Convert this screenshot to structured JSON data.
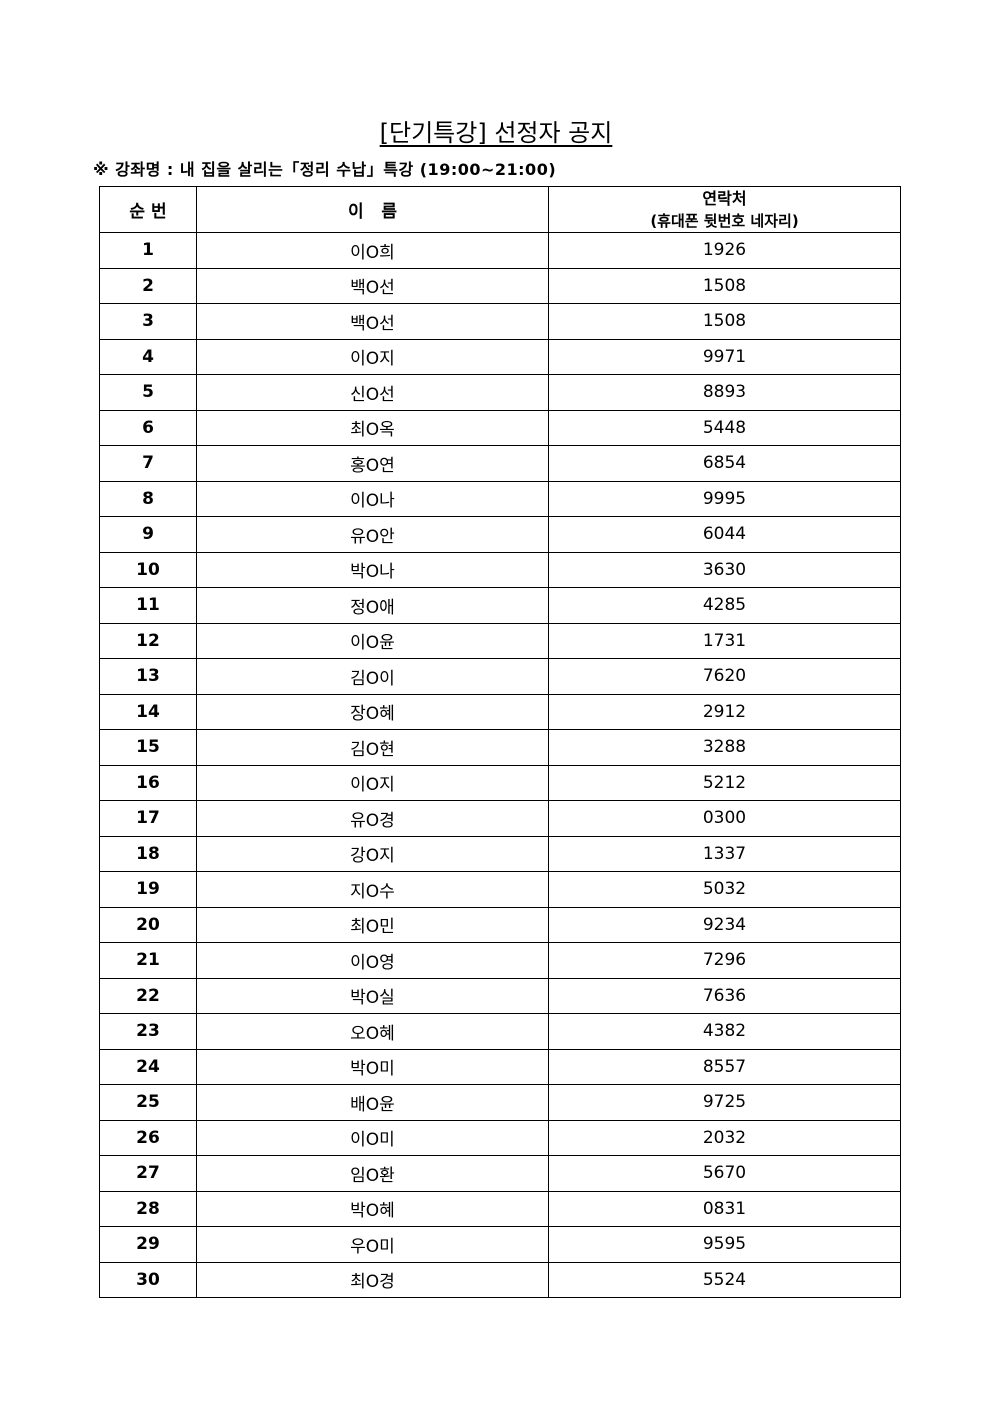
{
  "title": "[단기특강] 선정자 공지",
  "subtitle": "※ 강좌명 : 내 집을 살리는「정리 수납」특강 (19:00~21:00)",
  "table": {
    "headers": {
      "no": "순 번",
      "name": "이   름",
      "contact": "연락처",
      "contact_sub": "(휴대폰 뒷번호 네자리)"
    },
    "rows": [
      {
        "no": "1",
        "name": "이O희",
        "phone": "1926"
      },
      {
        "no": "2",
        "name": "백O선",
        "phone": "1508"
      },
      {
        "no": "3",
        "name": "백O선",
        "phone": "1508"
      },
      {
        "no": "4",
        "name": "이O지",
        "phone": "9971"
      },
      {
        "no": "5",
        "name": "신O선",
        "phone": "8893"
      },
      {
        "no": "6",
        "name": "최O옥",
        "phone": "5448"
      },
      {
        "no": "7",
        "name": "홍O연",
        "phone": "6854"
      },
      {
        "no": "8",
        "name": "이O나",
        "phone": "9995"
      },
      {
        "no": "9",
        "name": "유O안",
        "phone": "6044"
      },
      {
        "no": "10",
        "name": "박O나",
        "phone": "3630"
      },
      {
        "no": "11",
        "name": "정O애",
        "phone": "4285"
      },
      {
        "no": "12",
        "name": "이O윤",
        "phone": "1731"
      },
      {
        "no": "13",
        "name": "김O이",
        "phone": "7620"
      },
      {
        "no": "14",
        "name": "장O혜",
        "phone": "2912"
      },
      {
        "no": "15",
        "name": "김O현",
        "phone": "3288"
      },
      {
        "no": "16",
        "name": "이O지",
        "phone": "5212"
      },
      {
        "no": "17",
        "name": "유O경",
        "phone": "0300"
      },
      {
        "no": "18",
        "name": "강O지",
        "phone": "1337"
      },
      {
        "no": "19",
        "name": "지O수",
        "phone": "5032"
      },
      {
        "no": "20",
        "name": "최O민",
        "phone": "9234"
      },
      {
        "no": "21",
        "name": "이O영",
        "phone": "7296"
      },
      {
        "no": "22",
        "name": "박O실",
        "phone": "7636"
      },
      {
        "no": "23",
        "name": "오O혜",
        "phone": "4382"
      },
      {
        "no": "24",
        "name": "박O미",
        "phone": "8557"
      },
      {
        "no": "25",
        "name": "배O윤",
        "phone": "9725"
      },
      {
        "no": "26",
        "name": "이O미",
        "phone": "2032"
      },
      {
        "no": "27",
        "name": "임O환",
        "phone": "5670"
      },
      {
        "no": "28",
        "name": "박O혜",
        "phone": "0831"
      },
      {
        "no": "29",
        "name": "우O미",
        "phone": "9595"
      },
      {
        "no": "30",
        "name": "최O경",
        "phone": "5524"
      }
    ]
  }
}
